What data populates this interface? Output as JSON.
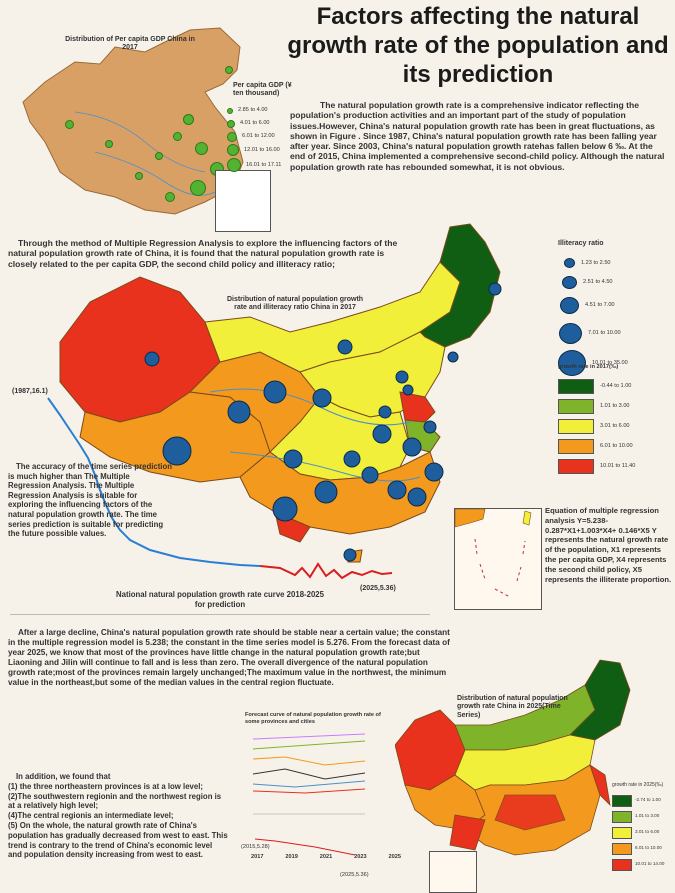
{
  "title": "Factors affecting the natural growth rate of the population and its prediction",
  "intro": "The natural population growth rate is a comprehensive indicator reflecting the population's production activities and an important part of the study of population issues.However, China's natural population growth rate has been in great fluctuations, as shown in Figure . Since 1987, China's natural population growth rate has been falling year after year. Since 2003, China's natural population growth ratehas fallen below 6 ‰. At the end of 2015, China implemented a comprehensive second-child policy. Although the natural population growth rate has rebounded somewhat, it is not obvious.",
  "gdp_map": {
    "title": "Distribution of Per capita GDP China in 2017",
    "legend_title": "Per capita GDP (¥ ten thousand)",
    "legend": [
      "2.85 to 4.00",
      "4.01 to 6.00",
      "6.01 to 12.00",
      "12.01 to 16.00",
      "16.01 to 17.11"
    ],
    "fill_color": "#d9a066",
    "dot_color": "#54b232"
  },
  "regression_text": "Through the method of Multiple Regression Analysis to explore the influencing factors of the natural population growth rate of China, it is found that the natural population growth rate is closely related to the per capita GDP, the second child policy and illiteracy ratio;",
  "main_map": {
    "title": "Distribution of natural population growth rate and illiteracy ratio China in 2017",
    "illiteracy_title": "Illiteracy ratio",
    "illiteracy_legend": [
      "1.23 to 2.50",
      "2.51 to 4.50",
      "4.51 to 7.00",
      "7.01 to 10.00",
      "10.01 to 35.00"
    ],
    "growth_title": "growth rate in 2017(‰)",
    "growth_legend": [
      {
        "label": "-0.44 to 1.00",
        "color": "#0f5e14"
      },
      {
        "label": "1.01 to 3.00",
        "color": "#7fb32a"
      },
      {
        "label": "3.01 to 6.00",
        "color": "#f1ef3a"
      },
      {
        "label": "6.01 to 10.00",
        "color": "#f39a1e"
      },
      {
        "label": "10.01 to 11.40",
        "color": "#e8321e"
      }
    ]
  },
  "curve_start": "(1987,16.1)",
  "curve_end": "(2025,5.36)",
  "accuracy_text": "The accuracy of the time series prediction is much higher than The Multiple Regression Analysis. The Multiple Regression Analysis is suitable for exploring the influencing factors of the natural population growth rate. The time series prediction is suitable for predicting the future possible values.",
  "curve_caption": "National natural population growth rate curve 2018-2025 for prediction",
  "equation_text": "Equation of multiple regression analysis Y=5.238-0.287*X1+1.003*X4+ 0.146*X5 Y represents the natural growth rate of the population, X1 represents the per capita GDP, X4 represents the second child policy, X5 represents the illiterate proportion.",
  "forecast_text": "After a large decline, China's natural population growth rate should be stable near a certain value; the constant in the multiple regression model is 5.238; the constant in the time series model is 5.276. From the forecast data of year 2025, we know that most of the provinces have little change in the natural population growth rate;but Liaoning and Jilin will continue to fall and is less than zero. The overall divergence of the natural population growth rate;most of the provinces remain largely unchanged;The maximum value in the northwest, the minimum value in the northeast,but some of the median values in the central region fluctuate.",
  "findings": {
    "intro": "In addition, we found that",
    "items": [
      "(1) the three northeastern provinces is at a low level;",
      "(2)The southwestern regionin and the northwest region is at a relatively high level;",
      "(4)The central regionis an intermediate level;",
      "(5) On the whole, the natural growth rate of China's population has gradually decreased from west to east. This trend is contrary to the trend of China's economic level and population density increasing from west to east."
    ]
  },
  "forecast_chart": {
    "title": "Forecast curve of natural population growth rate of some provinces and cities",
    "years": [
      "2017",
      "2019",
      "2021",
      "2023",
      "2025"
    ],
    "start_label": "(2015,5.28)",
    "end_label": "(2025,5.36)"
  },
  "map2025": {
    "title": "Distribution of natural population growth rate China in 2025(Time Series)",
    "legend_title": "growth rate in 2025(‰)",
    "legend": [
      {
        "label": "-2.74 to 1.00",
        "color": "#0f5e14"
      },
      {
        "label": "1.01 to 3.00",
        "color": "#7fb32a"
      },
      {
        "label": "3.01 to 6.00",
        "color": "#f1ef3a"
      },
      {
        "label": "6.01 to 10.00",
        "color": "#f39a1e"
      },
      {
        "label": "10.01 to 14.00",
        "color": "#e8321e"
      }
    ]
  }
}
